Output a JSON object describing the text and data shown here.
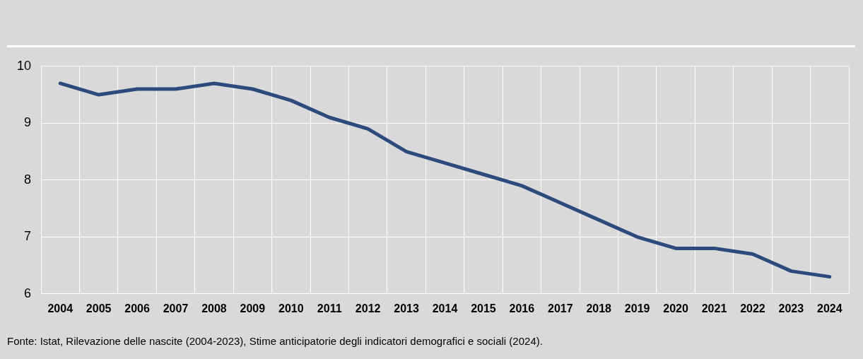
{
  "chart_data": {
    "type": "line",
    "categories": [
      "2004",
      "2005",
      "2006",
      "2007",
      "2008",
      "2009",
      "2010",
      "2011",
      "2012",
      "2013",
      "2014",
      "2015",
      "2016",
      "2017",
      "2018",
      "2019",
      "2020",
      "2021",
      "2022",
      "2023",
      "2024"
    ],
    "series": [
      {
        "color": "#2c4a7c",
        "values": [
          9.7,
          9.5,
          9.6,
          9.6,
          9.7,
          9.6,
          9.4,
          9.1,
          8.9,
          8.5,
          8.3,
          8.1,
          7.9,
          7.6,
          7.3,
          7.0,
          6.8,
          6.8,
          6.7,
          6.4,
          6.3
        ]
      }
    ],
    "ylim": [
      6,
      10
    ],
    "yticks": [
      6,
      7,
      8,
      9,
      10
    ],
    "grid": true,
    "legend": false,
    "marker": "none",
    "line_style": "solid",
    "annotations": [
      "Fonte: Istat, Rilevazione delle nascite (2004-2023), Stime anticipatorie degli indicatori demografici e sociali (2024)."
    ]
  }
}
